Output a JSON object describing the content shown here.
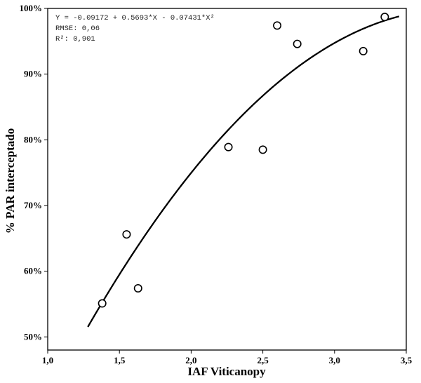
{
  "chart_data": {
    "type": "scatter",
    "xlabel": "IAF Viticanopy",
    "ylabel": "% PAR interceptado",
    "xlim": [
      1.0,
      3.5
    ],
    "ylim": [
      0.48,
      1.0
    ],
    "x_ticks": [
      1.0,
      1.5,
      2.0,
      2.5,
      3.0,
      3.5
    ],
    "x_tick_labels": [
      "1,0",
      "1,5",
      "2,0",
      "2,5",
      "3,0",
      "3,5"
    ],
    "y_ticks": [
      0.5,
      0.6,
      0.7,
      0.8,
      0.9,
      1.0
    ],
    "y_tick_labels": [
      "50%",
      "60%",
      "70%",
      "80%",
      "90%",
      "100%"
    ],
    "grid": false,
    "series": [
      {
        "type": "scatter",
        "marker": "open-circle",
        "color": "#000000",
        "x": [
          1.38,
          1.55,
          1.63,
          2.26,
          2.5,
          2.6,
          2.74,
          3.2,
          3.35
        ],
        "y": [
          0.551,
          0.656,
          0.574,
          0.789,
          0.785,
          0.974,
          0.946,
          0.935,
          0.987
        ]
      },
      {
        "type": "line",
        "fit": "quadratic",
        "color": "#000000",
        "coefficients": {
          "a": -0.09172,
          "b": 0.5693,
          "c": -0.07431
        },
        "x_range": [
          1.28,
          3.45
        ]
      }
    ],
    "annotation": {
      "equation": "Y = -0.09172 + 0.5693*X - 0.07431*X²",
      "rmse": "RMSE: 0,06",
      "r2": "R²: 0,901"
    }
  }
}
